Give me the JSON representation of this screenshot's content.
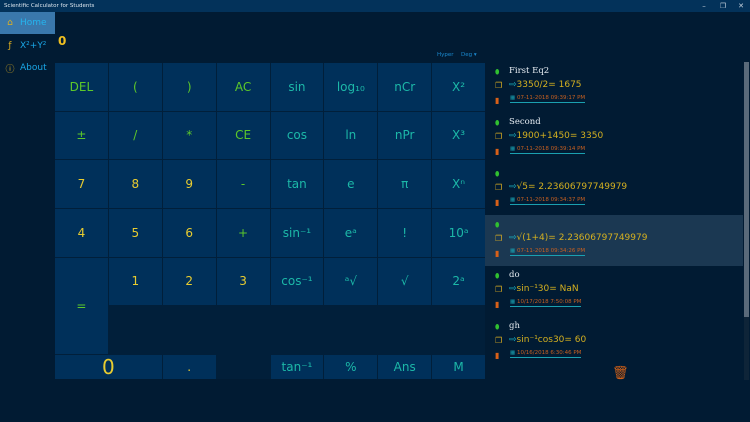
{
  "app": {
    "title": "Scientific Calculator for Students"
  },
  "window_controls": {
    "minimize": "–",
    "maximize": "❐",
    "close": "✕"
  },
  "sidebar": {
    "items": [
      {
        "label": "Home",
        "icon": "⌂"
      },
      {
        "label": "X²+Y²",
        "icon": "ƒ"
      },
      {
        "label": "About",
        "icon": "ⓘ"
      }
    ]
  },
  "display": {
    "value": "0"
  },
  "mode": {
    "hyper": "Hyper",
    "angle": "Deg ▾"
  },
  "keys": [
    [
      "DEL",
      "(",
      ")",
      "AC",
      "sin",
      "log₁₀",
      "nCr",
      "X²"
    ],
    [
      "±",
      "/",
      "*",
      "CE",
      "cos",
      "ln",
      "nPr",
      "X³"
    ],
    [
      "7",
      "8",
      "9",
      "-",
      "tan",
      "e",
      "π",
      "Xⁿ"
    ],
    [
      "4",
      "5",
      "6",
      "+",
      "sin⁻¹",
      "eᵃ",
      "!",
      "10ᵃ"
    ],
    [
      "1",
      "2",
      "3",
      "=",
      "cos⁻¹",
      "ᵃ√",
      "√",
      "2ᵃ"
    ],
    [
      "0",
      ".",
      "tan⁻¹",
      "%",
      "Ans",
      "M"
    ]
  ],
  "colors": {
    "digit": "#e8cc30",
    "operator": "#5cc82a",
    "function": "#1cb8a8",
    "background": "#011b33",
    "button": "#00305a"
  },
  "history": [
    {
      "title": "First Eq2",
      "expr": "3350/2= 1675",
      "date": "07-11-2018 09:39:17 PM"
    },
    {
      "title": "Second",
      "expr": "1900+1450= 3350",
      "date": "07-11-2018 09:39:14 PM"
    },
    {
      "title": "",
      "expr": "√5= 2.23606797749979",
      "date": "07-11-2018 09:34:37 PM"
    },
    {
      "title": "",
      "expr": "√(1+4)= 2.23606797749979",
      "date": "07-11-2018 09:34:26 PM",
      "selected": true
    },
    {
      "title": "do",
      "expr": "sin⁻¹30= NaN",
      "date": "10/17/2018 7:50:08 PM"
    },
    {
      "title": "gh",
      "expr": "sin⁻¹cos30= 60",
      "date": "10/16/2018 6:30:46 PM"
    }
  ]
}
